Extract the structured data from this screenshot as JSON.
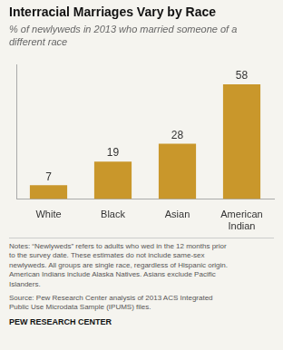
{
  "chart_data": {
    "type": "bar",
    "title": "Interracial Marriages Vary by Race",
    "subtitle": "% of newlyweds in 2013 who married someone of a\ndifferent race",
    "categories": [
      "White",
      "Black",
      "Asian",
      "American\nIndian"
    ],
    "values": [
      7,
      19,
      28,
      58
    ],
    "color": "#C9972B",
    "ylim": [
      0,
      68
    ],
    "grid": false,
    "data_labels": true,
    "tick_labels": "x",
    "notes": [
      "Notes: “Newlyweds” refers to adults who wed in the 12 months prior",
      "to the survey date. These estimates do not include same-sex",
      "newlyweds. All groups are single race, regardless of Hispanic origin.",
      "American Indians include Alaska Natives. Asians exclude Pacific",
      "Islanders."
    ],
    "source": [
      "Source: Pew Research Center analysis of 2013 ACS Integrated",
      "Public Use Microdata Sample (IPUMS) files."
    ],
    "footer": "PEW RESEARCH CENTER"
  }
}
